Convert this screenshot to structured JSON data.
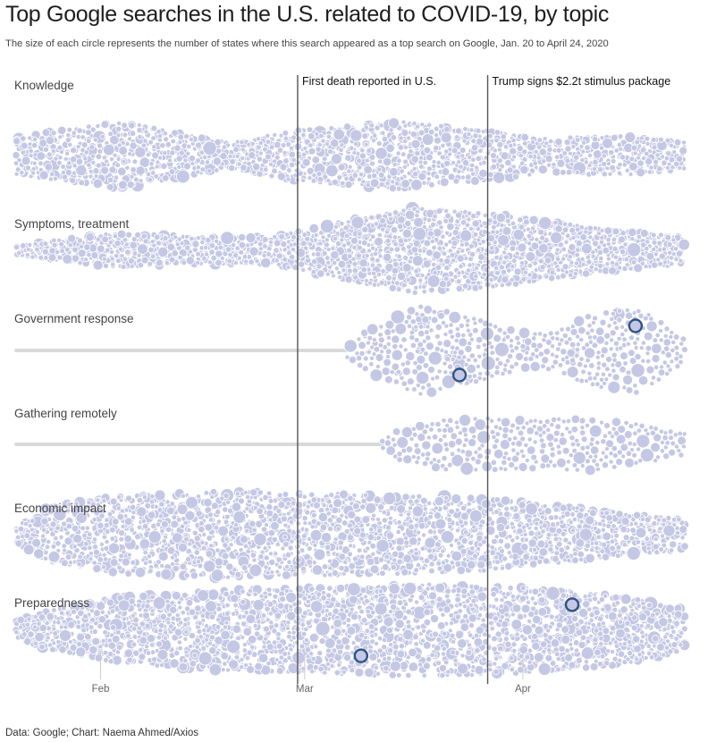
{
  "title": "Top Google searches in the U.S. related to COVID-19, by topic",
  "subtitle": "The size of each circle represents the number of states where this search appeared as a top search on Google, Jan. 20 to April 24, 2020",
  "footer": "Data: Google; Chart: Naema Ahmed/Axios",
  "colors": {
    "bubble": "#c5c8e4",
    "bubble_stroke": "#ffffff",
    "highlight_stroke": "#2d5384",
    "baseline": "#d9d9d9",
    "annotation_line": "#555555",
    "tick": "#cccccc"
  },
  "chart_data": {
    "type": "beeswarm",
    "x_axis": {
      "type": "date",
      "range": [
        "2020-01-20",
        "2020-04-24"
      ],
      "ticks": [
        {
          "date": "2020-02-01",
          "label": "Feb"
        },
        {
          "date": "2020-03-01",
          "label": "Mar"
        },
        {
          "date": "2020-04-01",
          "label": "Apr"
        }
      ]
    },
    "annotations": [
      {
        "date": "2020-02-29",
        "label": "First death reported in U.S."
      },
      {
        "date": "2020-03-27",
        "label": "Trump signs $2.2t stimulus package"
      }
    ],
    "series": [
      {
        "name": "Knowledge",
        "first_search": "2020-01-20",
        "density": [
          [
            0,
            0.55
          ],
          [
            0.07,
            0.75
          ],
          [
            0.16,
            1.0
          ],
          [
            0.25,
            0.62
          ],
          [
            0.32,
            0.38
          ],
          [
            0.42,
            0.75
          ],
          [
            0.58,
            1.0
          ],
          [
            0.68,
            0.78
          ],
          [
            0.8,
            0.5
          ],
          [
            0.9,
            0.6
          ],
          [
            1.0,
            0.4
          ]
        ],
        "highlights": []
      },
      {
        "name": "Symptoms, treatment",
        "first_search": "2020-01-20",
        "density": [
          [
            0,
            0.1
          ],
          [
            0.05,
            0.22
          ],
          [
            0.15,
            0.4
          ],
          [
            0.28,
            0.32
          ],
          [
            0.38,
            0.3
          ],
          [
            0.45,
            0.55
          ],
          [
            0.6,
            1.0
          ],
          [
            0.72,
            0.85
          ],
          [
            0.85,
            0.55
          ],
          [
            1.0,
            0.3
          ]
        ],
        "highlights": []
      },
      {
        "name": "Government response",
        "first_search": "2020-03-07",
        "density": [
          [
            0,
            0.15
          ],
          [
            0.08,
            0.55
          ],
          [
            0.22,
            1.0
          ],
          [
            0.36,
            0.75
          ],
          [
            0.52,
            0.4
          ],
          [
            0.62,
            0.42
          ],
          [
            0.72,
            0.8
          ],
          [
            0.86,
            0.95
          ],
          [
            1.0,
            0.3
          ]
        ],
        "highlights": [
          {
            "date": "2020-03-23"
          },
          {
            "date": "2020-04-17"
          }
        ]
      },
      {
        "name": "Gathering remotely",
        "first_search": "2020-03-12",
        "density": [
          [
            0,
            0.12
          ],
          [
            0.06,
            0.45
          ],
          [
            0.2,
            0.7
          ],
          [
            0.35,
            0.72
          ],
          [
            0.5,
            0.68
          ],
          [
            0.68,
            0.75
          ],
          [
            0.85,
            0.55
          ],
          [
            1.0,
            0.3
          ]
        ],
        "highlights": []
      },
      {
        "name": "Economic impact",
        "first_search": "2020-01-20",
        "density": [
          [
            0,
            0.18
          ],
          [
            0.05,
            0.65
          ],
          [
            0.15,
            0.9
          ],
          [
            0.3,
            1.0
          ],
          [
            0.5,
            0.95
          ],
          [
            0.7,
            0.85
          ],
          [
            0.85,
            0.6
          ],
          [
            1.0,
            0.35
          ]
        ],
        "highlights": []
      },
      {
        "name": "Preparedness",
        "first_search": "2020-01-20",
        "density": [
          [
            0,
            0.2
          ],
          [
            0.05,
            0.42
          ],
          [
            0.15,
            0.7
          ],
          [
            0.3,
            0.85
          ],
          [
            0.45,
            0.92
          ],
          [
            0.62,
            1.0
          ],
          [
            0.78,
            0.9
          ],
          [
            0.9,
            0.75
          ],
          [
            1.0,
            0.45
          ]
        ],
        "highlights": [
          {
            "date": "2020-03-09"
          },
          {
            "date": "2020-04-08"
          }
        ]
      }
    ]
  }
}
